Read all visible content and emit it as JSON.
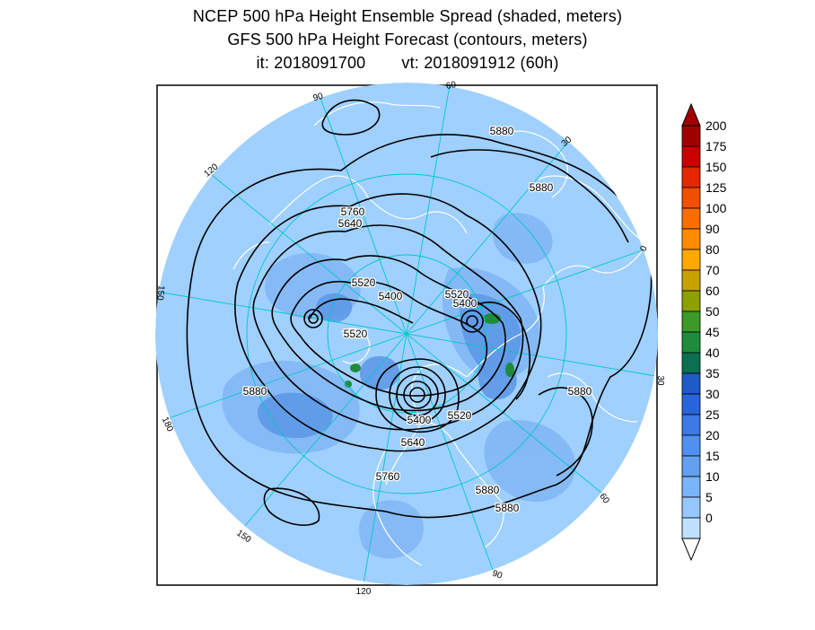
{
  "header": {
    "title_line1": "NCEP 500 hPa Height Ensemble Spread (shaded, meters)",
    "title_line2": "GFS 500 hPa Height Forecast (contours, meters)",
    "init_time": "it: 2018091700",
    "valid_time": "vt: 2018091912 (60h)"
  },
  "map": {
    "projection": "north-polar-stereographic",
    "longitude_labels": [
      "60",
      "30",
      "0",
      "30",
      "60",
      "90",
      "120",
      "150",
      "180",
      "150",
      "120",
      "90"
    ],
    "contour_labels": [
      "5880",
      "5880",
      "5760",
      "5640",
      "5520",
      "5400",
      "5520",
      "5400",
      "5520",
      "5880",
      "5880",
      "5400",
      "5520",
      "5640",
      "5760",
      "5880",
      "5880"
    ],
    "colors": {
      "ocean_fill": "#9fd0ff",
      "background_spread": "#82b7f5",
      "coastline": "#ffffff",
      "graticule": "#00c8c8",
      "contour": "#000000"
    }
  },
  "colorbar": {
    "labels": [
      "200",
      "175",
      "150",
      "125",
      "100",
      "90",
      "80",
      "70",
      "60",
      "50",
      "45",
      "40",
      "35",
      "30",
      "25",
      "20",
      "15",
      "10",
      "5",
      "0"
    ],
    "colors": [
      "#a00000",
      "#c80000",
      "#e62800",
      "#f05000",
      "#fa6e00",
      "#ff8c00",
      "#ffa800",
      "#c8a000",
      "#8ca000",
      "#3c9a28",
      "#1e8c3c",
      "#0a7050",
      "#1e5ac8",
      "#2864dc",
      "#3c78e6",
      "#5090f0",
      "#64a0f0",
      "#78b4f8",
      "#96c8ff",
      "#bfe0ff"
    ],
    "top_arrow_color": "#a00000",
    "bottom_arrow_color": "#ffffff"
  }
}
